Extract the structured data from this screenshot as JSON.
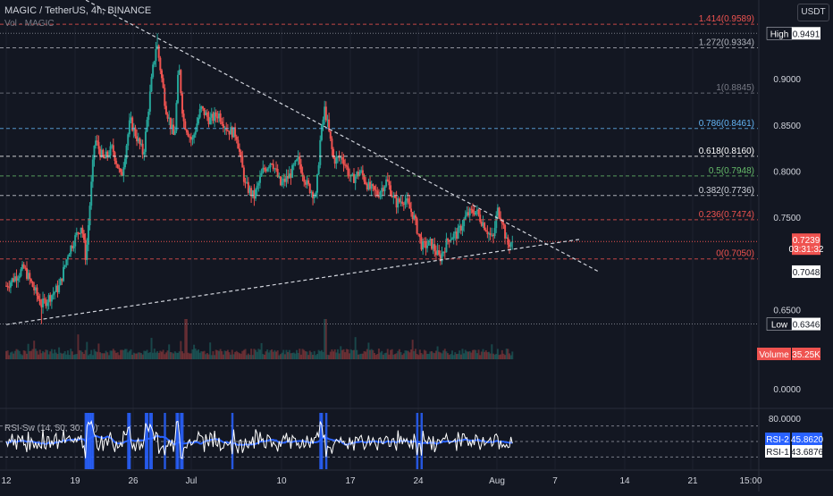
{
  "header": {
    "symbol_line": "MAGIC / TetherUS, 4h, BINANCE",
    "volume_line": "Vol · MAGIC",
    "currency": "USDT"
  },
  "colors": {
    "background": "#131722",
    "up": "#26a69a",
    "down": "#ef5350",
    "text": "#d1d4dc",
    "muted": "#787b86",
    "rsi_line": "#ffffff",
    "rsi_ma": "#2962ff",
    "rsi_signal": "#2962ff"
  },
  "chart_data": [
    {
      "type": "candlestick",
      "title": "MAGIC / TetherUS, 4h, BINANCE",
      "y_axis": {
        "ticks": [
          "0.9000",
          "0.8500",
          "0.8000",
          "0.7500",
          "0.6500",
          "0.0000",
          "80.0000"
        ],
        "range": [
          0.615,
          0.965
        ]
      },
      "x_axis": {
        "ticks": [
          "12",
          "19",
          "26",
          "Jul",
          "10",
          "17",
          "24",
          "Aug",
          "7",
          "14",
          "21",
          "15:00"
        ]
      },
      "price_path": [
        {
          "d": 0,
          "p": 0.676
        },
        {
          "d": 2,
          "p": 0.695
        },
        {
          "d": 4,
          "p": 0.655
        },
        {
          "d": 6,
          "p": 0.675
        },
        {
          "d": 7,
          "p": 0.712
        },
        {
          "d": 8.5,
          "p": 0.742
        },
        {
          "d": 9,
          "p": 0.705
        },
        {
          "d": 10,
          "p": 0.835
        },
        {
          "d": 11,
          "p": 0.812
        },
        {
          "d": 12,
          "p": 0.825
        },
        {
          "d": 13,
          "p": 0.792
        },
        {
          "d": 14,
          "p": 0.855
        },
        {
          "d": 15.5,
          "p": 0.818
        },
        {
          "d": 16.5,
          "p": 0.905
        },
        {
          "d": 17,
          "p": 0.94
        },
        {
          "d": 18,
          "p": 0.87
        },
        {
          "d": 19,
          "p": 0.835
        },
        {
          "d": 19.5,
          "p": 0.915
        },
        {
          "d": 20,
          "p": 0.855
        },
        {
          "d": 21,
          "p": 0.832
        },
        {
          "d": 22,
          "p": 0.868
        },
        {
          "d": 23,
          "p": 0.855
        },
        {
          "d": 24,
          "p": 0.862
        },
        {
          "d": 25,
          "p": 0.845
        },
        {
          "d": 26,
          "p": 0.84
        },
        {
          "d": 27,
          "p": 0.785
        },
        {
          "d": 28,
          "p": 0.772
        },
        {
          "d": 29,
          "p": 0.8
        },
        {
          "d": 30,
          "p": 0.812
        },
        {
          "d": 31,
          "p": 0.785
        },
        {
          "d": 32,
          "p": 0.795
        },
        {
          "d": 33,
          "p": 0.812
        },
        {
          "d": 34,
          "p": 0.785
        },
        {
          "d": 35,
          "p": 0.772
        },
        {
          "d": 35.5,
          "p": 0.835
        },
        {
          "d": 36,
          "p": 0.868
        },
        {
          "d": 37,
          "p": 0.812
        },
        {
          "d": 38,
          "p": 0.815
        },
        {
          "d": 39,
          "p": 0.79
        },
        {
          "d": 40,
          "p": 0.8
        },
        {
          "d": 41,
          "p": 0.782
        },
        {
          "d": 42,
          "p": 0.775
        },
        {
          "d": 43,
          "p": 0.79
        },
        {
          "d": 44,
          "p": 0.765
        },
        {
          "d": 45,
          "p": 0.77
        },
        {
          "d": 46,
          "p": 0.752
        },
        {
          "d": 47,
          "p": 0.718
        },
        {
          "d": 48,
          "p": 0.722
        },
        {
          "d": 49,
          "p": 0.705
        },
        {
          "d": 50,
          "p": 0.728
        },
        {
          "d": 51,
          "p": 0.732
        },
        {
          "d": 52,
          "p": 0.752
        },
        {
          "d": 53,
          "p": 0.758
        },
        {
          "d": 54,
          "p": 0.742
        },
        {
          "d": 55,
          "p": 0.725
        },
        {
          "d": 55.5,
          "p": 0.758
        },
        {
          "d": 56,
          "p": 0.75
        },
        {
          "d": 56.6,
          "p": 0.72
        },
        {
          "d": 57.2,
          "p": 0.7239
        }
      ],
      "fibonacci": {
        "levels": [
          {
            "label": "1.414(0.9589)",
            "price": 0.9589,
            "color": "#ef5350"
          },
          {
            "label": "1.272(0.9334)",
            "price": 0.9334,
            "color": "#b2b5be"
          },
          {
            "label": "1(0.8845)",
            "price": 0.8845,
            "color": "#787b86"
          },
          {
            "label": "0.786(0.8461)",
            "price": 0.8461,
            "color": "#64b5f6"
          },
          {
            "label": "0.618(0.8160)",
            "price": 0.816,
            "color": "#ffffff"
          },
          {
            "label": "0.5(0.7948)",
            "price": 0.7948,
            "color": "#66bb6a"
          },
          {
            "label": "0.382(0.7736)",
            "price": 0.7736,
            "color": "#d1d4dc"
          },
          {
            "label": "0.236(0.7474)",
            "price": 0.7474,
            "color": "#ef5350"
          },
          {
            "label": "0(0.7050)",
            "price": 0.705,
            "color": "#ef5350"
          }
        ]
      },
      "trendlines": [
        {
          "name": "descending",
          "from": {
            "d": 9,
            "p": 0.985
          },
          "to": {
            "d": 67,
            "p": 0.691
          }
        },
        {
          "name": "ascending",
          "from": {
            "d": 0,
            "p": 0.634
          },
          "to": {
            "d": 65,
            "p": 0.7265
          }
        }
      ],
      "price_labels": [
        {
          "tag": "High",
          "value": "0.9491",
          "price": 0.9491,
          "style": "dark"
        },
        {
          "tag": "",
          "value": "0.7239",
          "sub": "03:31:32",
          "price": 0.7239,
          "style": "red"
        },
        {
          "tag": "",
          "value": "0.7048",
          "price": 0.7048,
          "style": "white"
        },
        {
          "tag": "Low",
          "value": "0.6346",
          "price": 0.6346,
          "style": "dark"
        }
      ],
      "current_price": 0.7239,
      "countdown": "03:31:32",
      "high": 0.9491,
      "low": 0.6346
    },
    {
      "type": "bar",
      "title": "Vol · MAGIC",
      "last_value": "35.25K",
      "label": "Volume"
    },
    {
      "type": "line",
      "title": "RSI-Sw (14, 50, 30, 70)",
      "series": [
        {
          "name": "RSI-2",
          "last_value": "45.8620"
        },
        {
          "name": "RSI-1",
          "last_value": "43.6876"
        }
      ],
      "levels": [
        70,
        50,
        30
      ]
    }
  ]
}
